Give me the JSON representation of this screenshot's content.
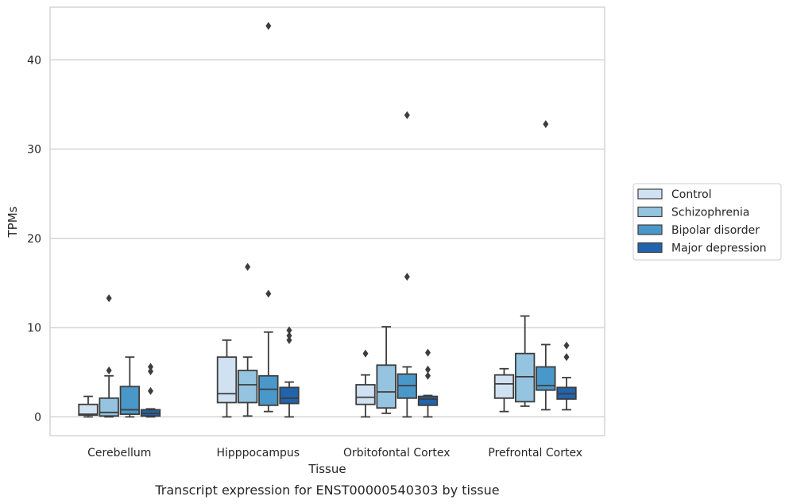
{
  "chart_data": {
    "type": "box",
    "title": "Transcript expression for ENST00000540303 by tissue",
    "xlabel": "Tissue",
    "ylabel": "TPMs",
    "ylim": [
      -2.1,
      45.9
    ],
    "yticks": [
      0,
      10,
      20,
      30,
      40
    ],
    "grid": "horizontal",
    "legend_position": "right",
    "categories": [
      "Cerebellum",
      "Hipppocampus",
      "Orbitofontal Cortex",
      "Prefrontal Cortex"
    ],
    "series": [
      {
        "name": "Control",
        "color": "#d0e1f2",
        "boxes": [
          {
            "whislo": 0.0,
            "q1": 0.2,
            "med": 0.3,
            "q3": 1.4,
            "whishi": 2.3,
            "fliers": []
          },
          {
            "whislo": 0.0,
            "q1": 1.6,
            "med": 2.6,
            "q3": 6.7,
            "whishi": 8.6,
            "fliers": []
          },
          {
            "whislo": 0.0,
            "q1": 1.4,
            "med": 2.2,
            "q3": 3.6,
            "whishi": 4.7,
            "fliers": [
              7.1
            ]
          },
          {
            "whislo": 0.6,
            "q1": 2.1,
            "med": 3.7,
            "q3": 4.7,
            "whishi": 5.4,
            "fliers": []
          }
        ]
      },
      {
        "name": "Schizophrenia",
        "color": "#94c4df",
        "boxes": [
          {
            "whislo": 0.0,
            "q1": 0.1,
            "med": 0.5,
            "q3": 2.1,
            "whishi": 4.6,
            "fliers": [
              5.2,
              13.3
            ]
          },
          {
            "whislo": 0.1,
            "q1": 1.6,
            "med": 3.6,
            "q3": 5.2,
            "whishi": 6.7,
            "fliers": [
              16.8
            ]
          },
          {
            "whislo": 0.4,
            "q1": 1.0,
            "med": 2.8,
            "q3": 5.8,
            "whishi": 10.1,
            "fliers": []
          },
          {
            "whislo": 1.2,
            "q1": 1.7,
            "med": 4.5,
            "q3": 7.1,
            "whishi": 11.3,
            "fliers": []
          }
        ]
      },
      {
        "name": "Bipolar disorder",
        "color": "#4a98c9",
        "boxes": [
          {
            "whislo": 0.0,
            "q1": 0.3,
            "med": 0.8,
            "q3": 3.4,
            "whishi": 6.7,
            "fliers": []
          },
          {
            "whislo": 0.6,
            "q1": 1.3,
            "med": 3.1,
            "q3": 4.6,
            "whishi": 9.5,
            "fliers": [
              13.8,
              43.8
            ]
          },
          {
            "whislo": 0.0,
            "q1": 2.1,
            "med": 3.5,
            "q3": 4.8,
            "whishi": 5.6,
            "fliers": [
              15.7,
              33.8
            ]
          },
          {
            "whislo": 0.8,
            "q1": 3.0,
            "med": 3.5,
            "q3": 5.6,
            "whishi": 8.1,
            "fliers": [
              32.8
            ]
          }
        ]
      },
      {
        "name": "Major depression",
        "color": "#2164ab",
        "boxes": [
          {
            "whislo": 0.0,
            "q1": 0.1,
            "med": 0.4,
            "q3": 0.8,
            "whishi": 0.9,
            "fliers": [
              2.9,
              5.1,
              5.6
            ]
          },
          {
            "whislo": 0.0,
            "q1": 1.5,
            "med": 2.1,
            "q3": 3.3,
            "whishi": 3.9,
            "fliers": [
              8.6,
              9.1,
              9.7
            ]
          },
          {
            "whislo": 0.0,
            "q1": 1.3,
            "med": 2.0,
            "q3": 2.3,
            "whishi": 2.4,
            "fliers": [
              4.6,
              5.3,
              7.2
            ]
          },
          {
            "whislo": 0.8,
            "q1": 2.0,
            "med": 2.6,
            "q3": 3.3,
            "whishi": 4.4,
            "fliers": [
              6.7,
              8.0
            ]
          }
        ]
      }
    ]
  }
}
